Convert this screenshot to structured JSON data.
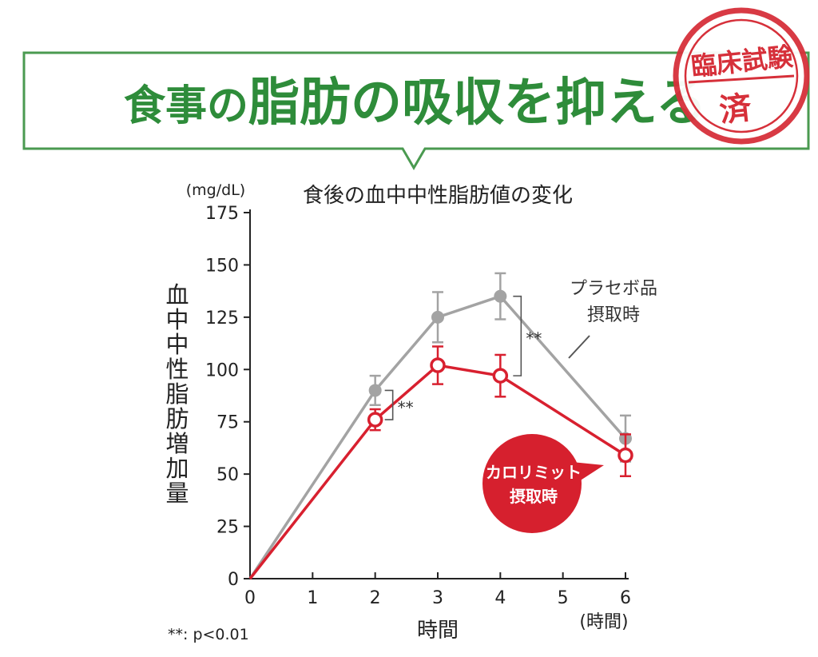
{
  "header": {
    "part1": "食事の",
    "part2": "脂肪の吸収を抑える",
    "stamp_top": "臨床試験",
    "stamp_bottom": "済",
    "accent": "#2e8c3a",
    "stamp_color": "#d6303a"
  },
  "chart_data": {
    "type": "line",
    "title": "食後の血中中性脂肪値の変化",
    "y_unit": "(mg/dL)",
    "ylabel": "血中中性脂肪増加量",
    "xlabel": "時間",
    "x_unit": "(時間)",
    "xlim": [
      0,
      6
    ],
    "ylim": [
      0,
      175
    ],
    "x_ticks": [
      0,
      1,
      2,
      3,
      4,
      5,
      6
    ],
    "y_ticks": [
      0,
      25,
      50,
      75,
      100,
      125,
      150,
      175
    ],
    "grid": false,
    "series": [
      {
        "name": "プラセボ品摂取時",
        "label_lines": [
          "プラセボ品",
          "摂取時"
        ],
        "color": "#a3a3a3",
        "marker": "filled-circle",
        "x": [
          0,
          2,
          3,
          4,
          6
        ],
        "y": [
          0,
          90,
          125,
          135,
          67
        ],
        "err": [
          0,
          7,
          12,
          11,
          11
        ]
      },
      {
        "name": "カロリミット摂取時",
        "label_lines": [
          "カロリミット",
          "摂取時"
        ],
        "color": "#d8202f",
        "marker": "open-circle",
        "x": [
          0,
          2,
          3,
          4,
          6
        ],
        "y": [
          0,
          76,
          102,
          97,
          59
        ],
        "err": [
          0,
          5,
          9,
          10,
          10
        ]
      }
    ],
    "significance": [
      {
        "x": 2,
        "label": "**"
      },
      {
        "x": 4,
        "label": "**"
      }
    ],
    "footnote": "**: p<0.01"
  }
}
